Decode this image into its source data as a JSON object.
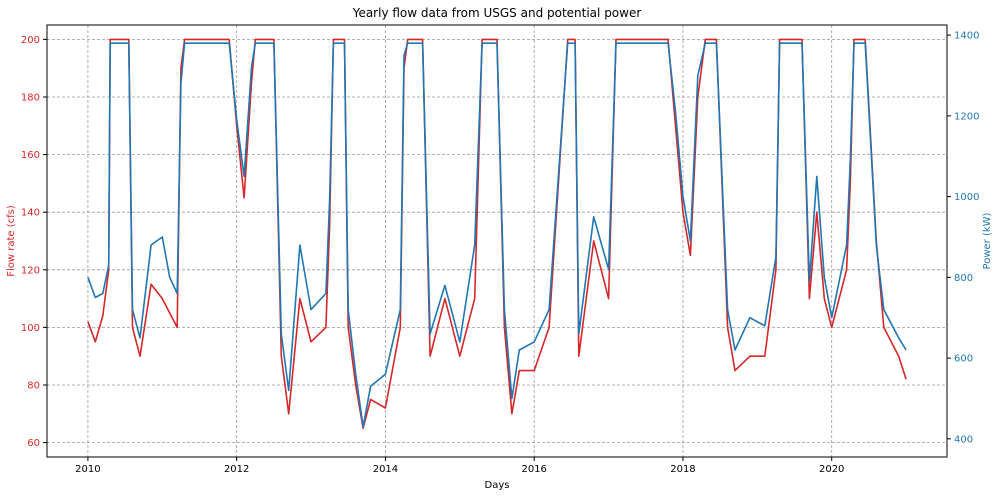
{
  "chart_data": {
    "type": "line",
    "title": "Yearly flow data from USGS and potential power",
    "xlabel": "Days",
    "ylabel_left": "Flow rate (cfs)",
    "ylabel_right": "Power (kW)",
    "xlim": [
      2009.45,
      2021.55
    ],
    "ylim_left": [
      55,
      205
    ],
    "ylim_right": [
      355,
      1425
    ],
    "x_ticks": [
      "2010",
      "2012",
      "2014",
      "2016",
      "2018",
      "2020"
    ],
    "x_tick_values": [
      2010,
      2012,
      2014,
      2016,
      2018,
      2020
    ],
    "y_ticks_left": [
      60,
      80,
      100,
      120,
      140,
      160,
      180,
      200
    ],
    "y_ticks_right": [
      400,
      600,
      800,
      1000,
      1200,
      1400
    ],
    "grid": true,
    "colors": {
      "flow": "#d62728",
      "power": "#1f77b4",
      "grid": "#9a9a9a"
    },
    "series": [
      {
        "axis": "left",
        "x": [
          2010.0,
          2010.1,
          2010.2,
          2010.28,
          2010.3,
          2010.55,
          2010.6,
          2010.7,
          2010.85,
          2011.0,
          2011.1,
          2011.2,
          2011.25,
          2011.3,
          2011.9,
          2012.0,
          2012.1,
          2012.2,
          2012.25,
          2012.3,
          2012.5,
          2012.6,
          2012.7,
          2012.85,
          2013.0,
          2013.2,
          2013.25,
          2013.3,
          2013.45,
          2013.5,
          2013.6,
          2013.7,
          2013.8,
          2014.0,
          2014.2,
          2014.25,
          2014.3,
          2014.5,
          2014.6,
          2014.8,
          2015.0,
          2015.2,
          2015.3,
          2015.35,
          2015.5,
          2015.6,
          2015.7,
          2015.8,
          2016.0,
          2016.2,
          2016.45,
          2016.5,
          2016.55,
          2016.6,
          2016.8,
          2017.0,
          2017.1,
          2017.15,
          2017.3,
          2017.8,
          2017.9,
          2018.0,
          2018.1,
          2018.2,
          2018.3,
          2018.45,
          2018.6,
          2018.7,
          2018.9,
          2019.1,
          2019.25,
          2019.3,
          2019.6,
          2019.7,
          2019.8,
          2019.9,
          2020.0,
          2020.2,
          2020.25,
          2020.3,
          2020.45,
          2020.6,
          2020.7,
          2020.9,
          2021.0
        ],
        "y": [
          102,
          95,
          104,
          120,
          200,
          200,
          100,
          90,
          115,
          110,
          105,
          100,
          190,
          200,
          200,
          170,
          145,
          185,
          200,
          200,
          200,
          90,
          70,
          110,
          95,
          100,
          135,
          200,
          200,
          100,
          80,
          65,
          75,
          72,
          100,
          190,
          200,
          200,
          90,
          110,
          90,
          110,
          200,
          200,
          200,
          100,
          70,
          85,
          85,
          100,
          200,
          200,
          200,
          90,
          130,
          110,
          200,
          200,
          200,
          200,
          170,
          140,
          125,
          180,
          200,
          200,
          100,
          85,
          90,
          90,
          120,
          200,
          200,
          110,
          140,
          110,
          100,
          120,
          150,
          200,
          200,
          130,
          100,
          90,
          82
        ]
      },
      {
        "axis": "right",
        "x": [
          2010.0,
          2010.1,
          2010.2,
          2010.28,
          2010.3,
          2010.55,
          2010.6,
          2010.7,
          2010.85,
          2011.0,
          2011.1,
          2011.2,
          2011.25,
          2011.3,
          2011.9,
          2012.0,
          2012.1,
          2012.2,
          2012.25,
          2012.3,
          2012.5,
          2012.6,
          2012.7,
          2012.85,
          2013.0,
          2013.2,
          2013.25,
          2013.3,
          2013.45,
          2013.5,
          2013.6,
          2013.7,
          2013.8,
          2014.0,
          2014.2,
          2014.25,
          2014.3,
          2014.5,
          2014.6,
          2014.8,
          2015.0,
          2015.2,
          2015.3,
          2015.35,
          2015.5,
          2015.6,
          2015.7,
          2015.8,
          2016.0,
          2016.2,
          2016.45,
          2016.5,
          2016.55,
          2016.6,
          2016.8,
          2017.0,
          2017.1,
          2017.15,
          2017.3,
          2017.8,
          2017.9,
          2018.0,
          2018.1,
          2018.2,
          2018.3,
          2018.45,
          2018.6,
          2018.7,
          2018.9,
          2019.1,
          2019.25,
          2019.3,
          2019.6,
          2019.7,
          2019.8,
          2019.9,
          2020.0,
          2020.2,
          2020.25,
          2020.3,
          2020.45,
          2020.6,
          2020.7,
          2020.9,
          2021.0
        ],
        "y": [
          800,
          750,
          760,
          830,
          1380,
          1380,
          720,
          650,
          880,
          900,
          800,
          760,
          1280,
          1380,
          1380,
          1190,
          1050,
          1320,
          1380,
          1380,
          1380,
          660,
          520,
          880,
          720,
          760,
          990,
          1380,
          1380,
          720,
          560,
          430,
          530,
          560,
          720,
          1350,
          1380,
          1380,
          660,
          780,
          640,
          880,
          1380,
          1380,
          1380,
          720,
          500,
          620,
          640,
          720,
          1380,
          1380,
          1380,
          660,
          950,
          820,
          1380,
          1380,
          1380,
          1380,
          1210,
          1000,
          890,
          1300,
          1380,
          1380,
          720,
          620,
          700,
          680,
          850,
          1380,
          1380,
          790,
          1050,
          800,
          700,
          880,
          1090,
          1380,
          1380,
          880,
          720,
          650,
          620
        ]
      }
    ]
  }
}
